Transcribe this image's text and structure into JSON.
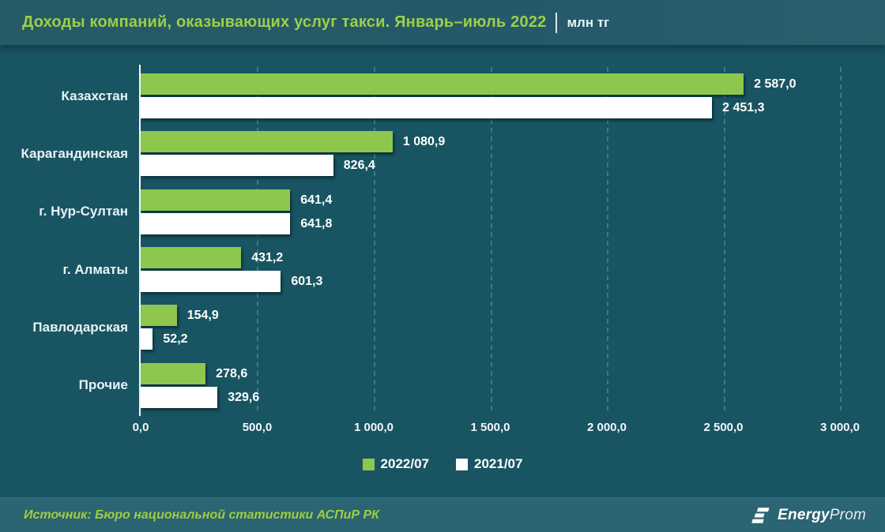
{
  "header": {
    "title": "Доходы компаний, оказывающих услуг такси. Январь–июль 2022",
    "unit": "млн тг"
  },
  "chart_data": {
    "type": "bar",
    "orientation": "horizontal",
    "title": "Доходы компаний, оказывающих услуг такси. Январь–июль 2022, млн тг",
    "categories": [
      "Казахстан",
      "Карагандинская",
      "г. Нур-Султан",
      "г. Алматы",
      "Павлодарская",
      "Прочие"
    ],
    "series": [
      {
        "name": "2022/07",
        "color": "#8dc74e",
        "values": [
          2587.0,
          1080.9,
          641.4,
          431.2,
          154.9,
          278.6
        ],
        "labels": [
          "2 587,0",
          "1 080,9",
          "641,4",
          "431,2",
          "154,9",
          "278,6"
        ]
      },
      {
        "name": "2021/07",
        "color": "#ffffff",
        "values": [
          2451.3,
          826.4,
          641.8,
          601.3,
          52.2,
          329.6
        ],
        "labels": [
          "2 451,3",
          "826,4",
          "641,8",
          "601,3",
          "52,2",
          "329,6"
        ]
      }
    ],
    "x_axis": {
      "min": 0,
      "max": 3000,
      "tick_step": 500,
      "tick_labels": [
        "0,0",
        "500,0",
        "1 000,0",
        "1 500,0",
        "2 000,0",
        "2 500,0",
        "3 000,0"
      ]
    },
    "legend_position": "bottom",
    "grid": "vertical-dashed"
  },
  "footer": {
    "source": "Источник: Бюро национальной статистики АСПиР РК",
    "logo_bold": "Energy",
    "logo_light": "Prom"
  },
  "colors": {
    "title_green": "#9ccf4a",
    "bar_green": "#8dc74e",
    "bar_white": "#ffffff",
    "source_green": "#9fce3e",
    "gridline": "#3a8399"
  }
}
